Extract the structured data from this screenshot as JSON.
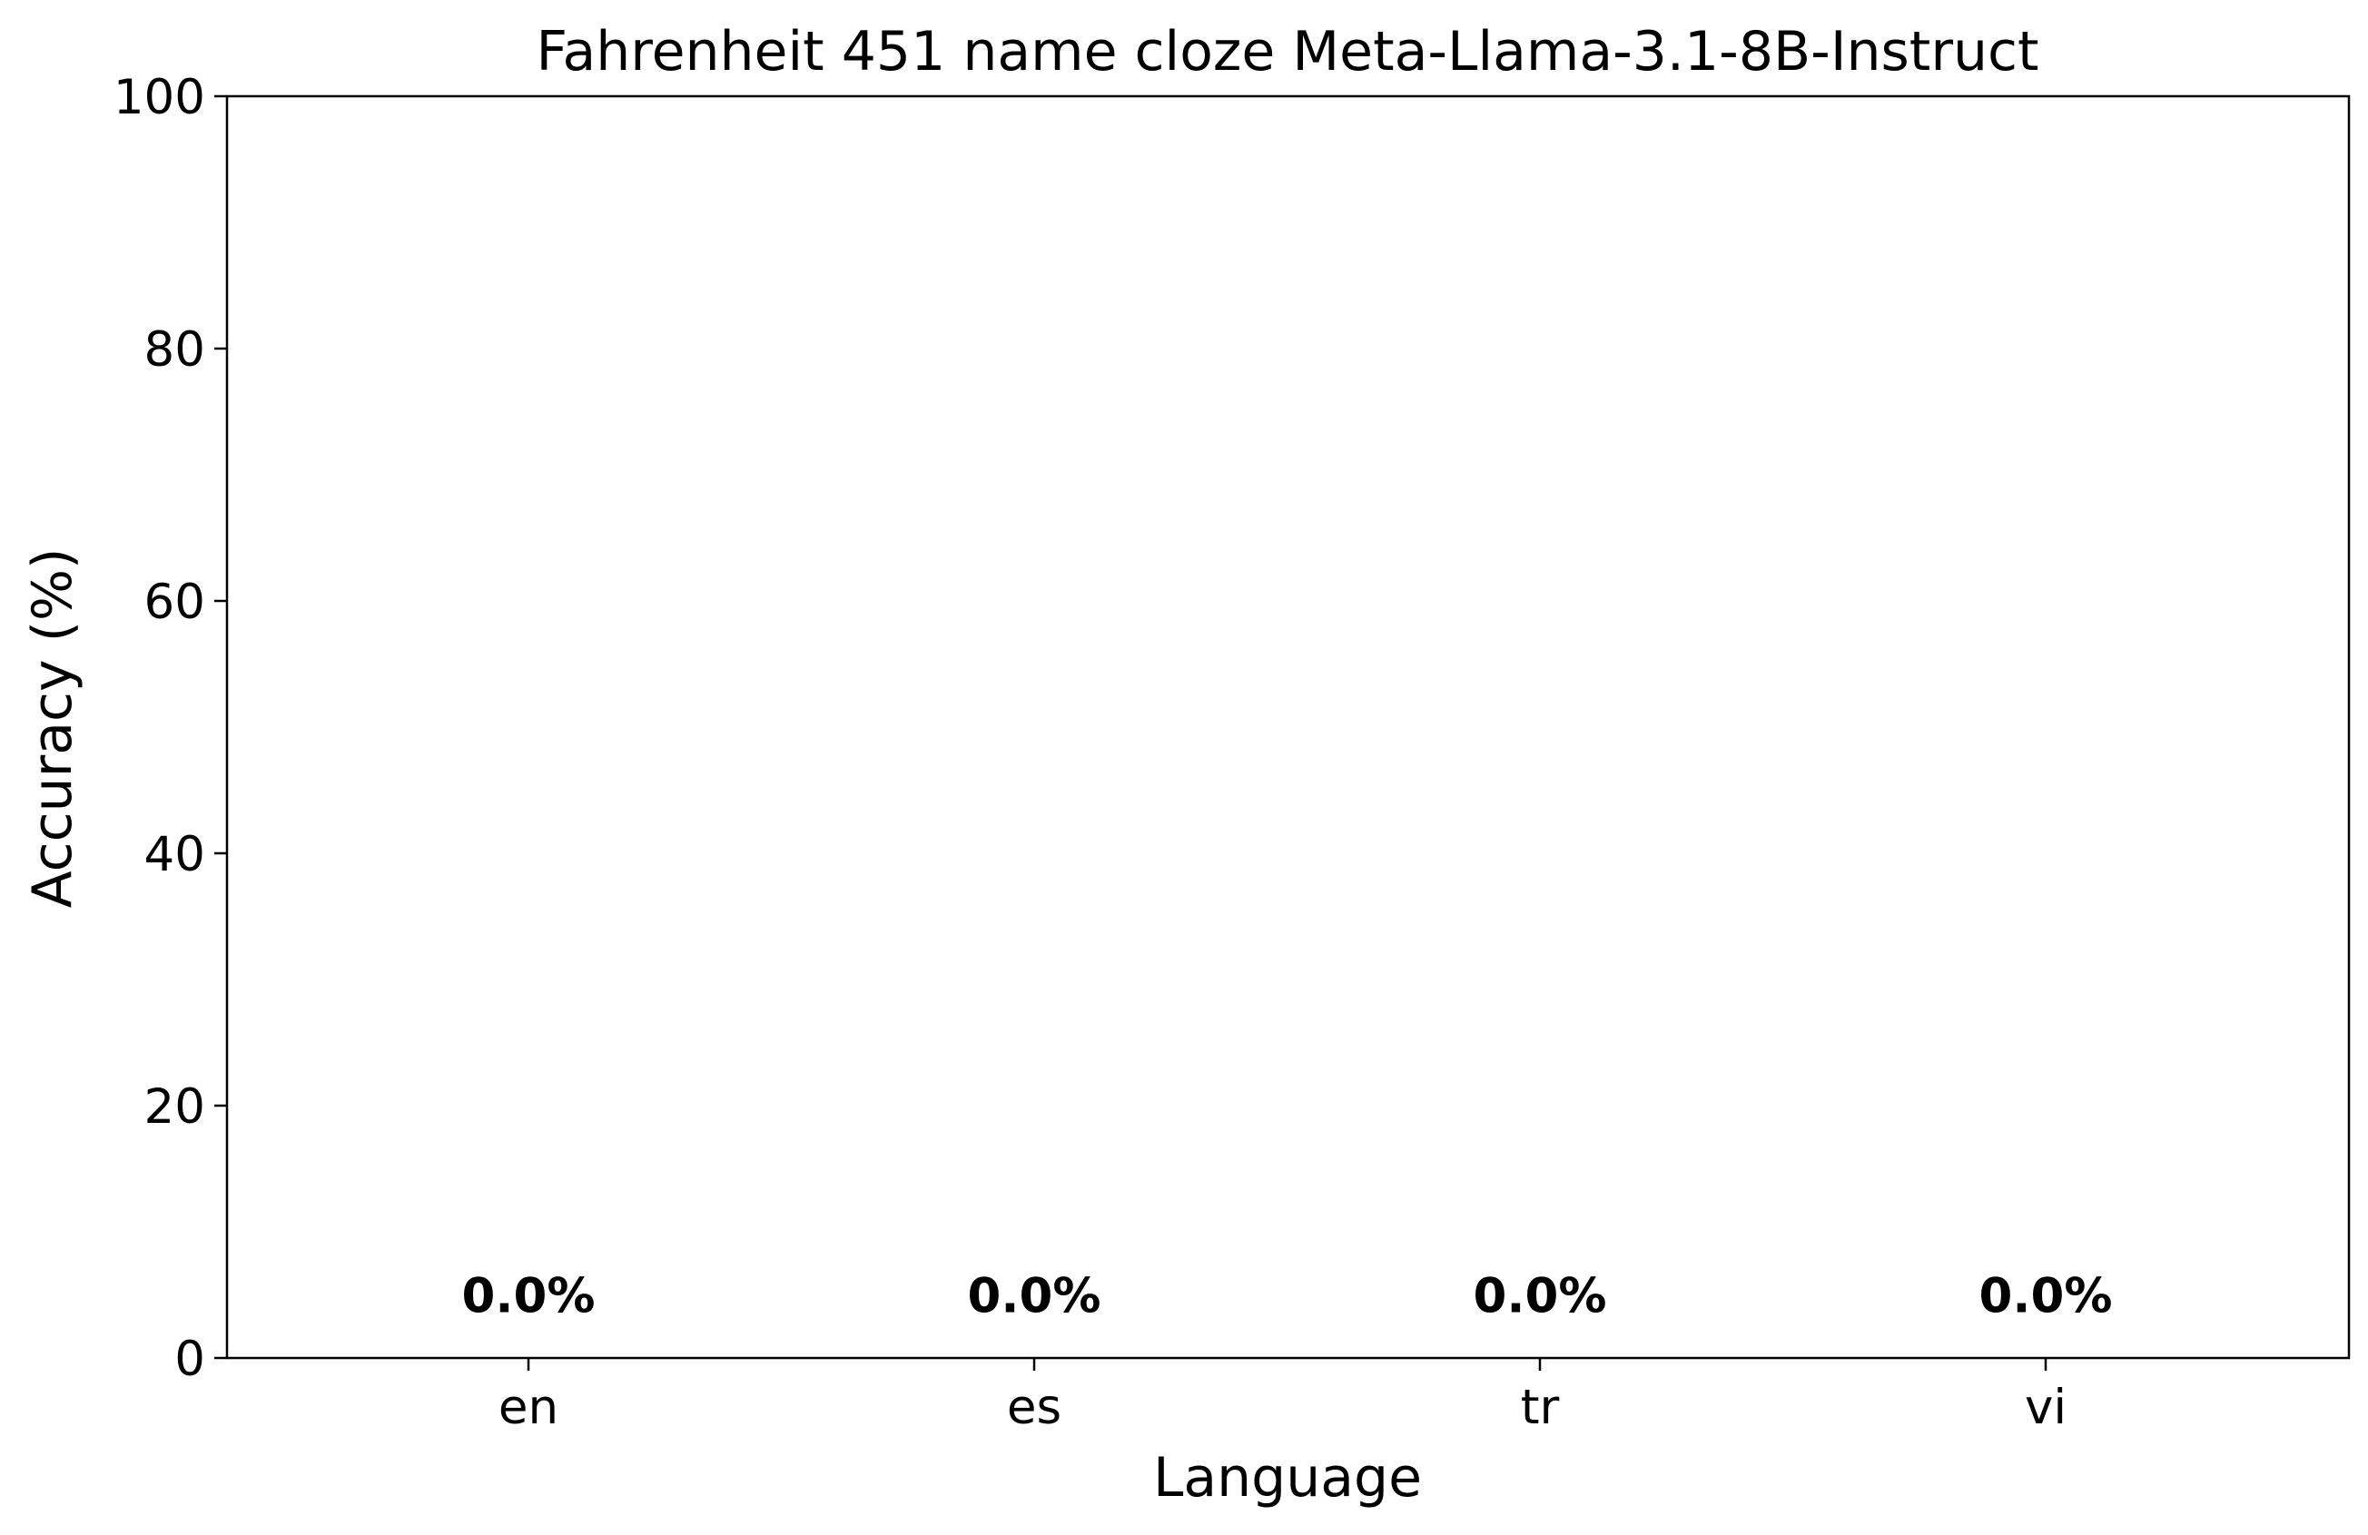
{
  "chart_data": {
    "type": "bar",
    "title": "Fahrenheit 451 name cloze Meta-Llama-3.1-8B-Instruct",
    "xlabel": "Language",
    "ylabel": "Accuracy (%)",
    "categories": [
      "en",
      "es",
      "tr",
      "vi"
    ],
    "values": [
      0.0,
      0.0,
      0.0,
      0.0
    ],
    "data_labels": [
      "0.0%",
      "0.0%",
      "0.0%",
      "0.0%"
    ],
    "ylim": [
      0,
      100
    ],
    "yticks": [
      0,
      20,
      40,
      60,
      80,
      100
    ],
    "grid": false,
    "legend": "none",
    "bar_color": "#1f77b4"
  }
}
